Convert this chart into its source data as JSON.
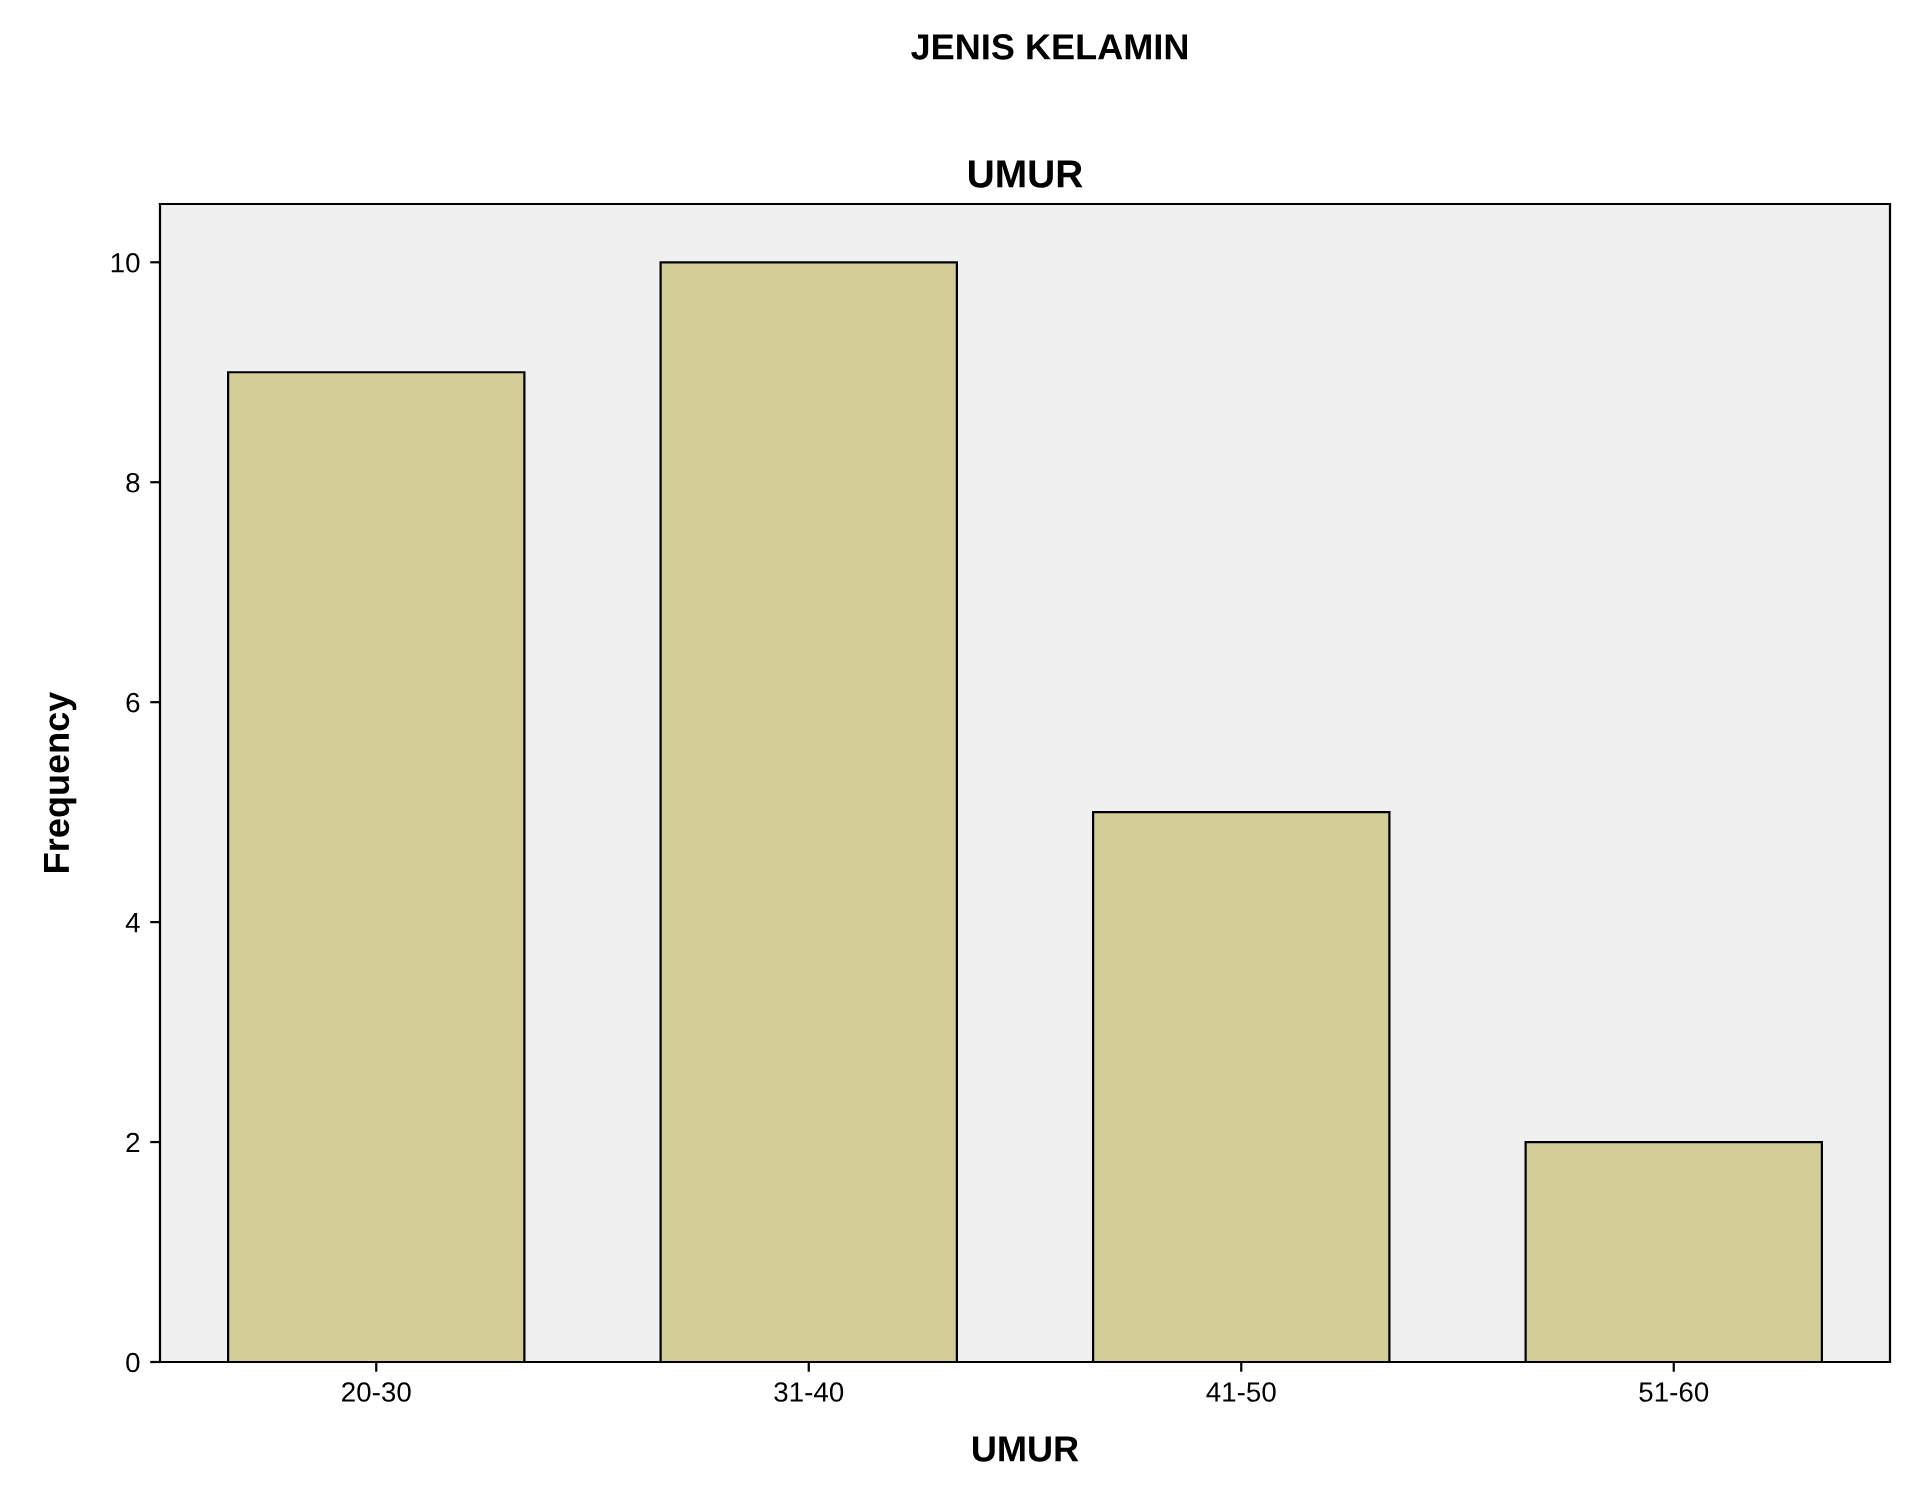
{
  "chart_data": {
    "type": "bar",
    "title": "JENIS KELAMIN",
    "subtitle": "UMUR",
    "xlabel": "UMUR",
    "ylabel": "Frequency",
    "categories": [
      "20-30",
      "31-40",
      "41-50",
      "51-60"
    ],
    "values": [
      9,
      10,
      5,
      2
    ],
    "color": "#d3ce98",
    "ylim": [
      0,
      10.53
    ],
    "yticks": [
      0,
      2,
      4,
      6,
      8,
      10
    ],
    "grid": false
  }
}
